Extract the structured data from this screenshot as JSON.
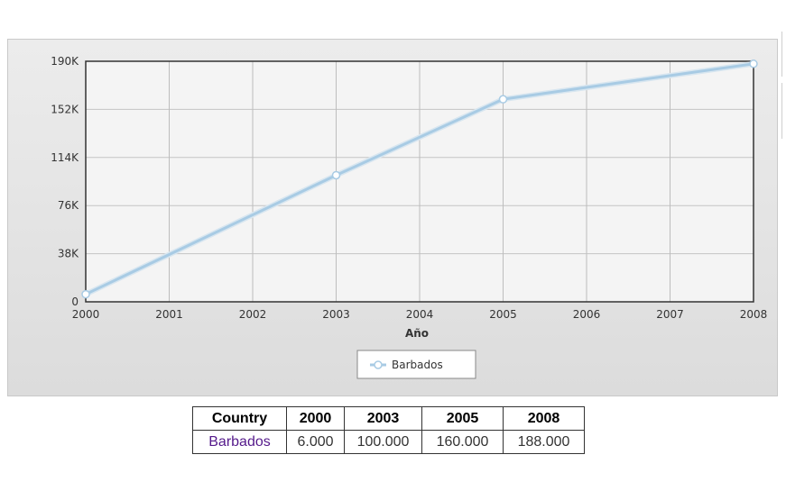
{
  "chart_data": {
    "type": "line",
    "x": [
      2000,
      2003,
      2005,
      2008
    ],
    "x_ticks": [
      "2000",
      "2001",
      "2002",
      "2003",
      "2004",
      "2005",
      "2006",
      "2007",
      "2008"
    ],
    "series": [
      {
        "name": "Barbados",
        "values": [
          6000,
          100000,
          160000,
          188000
        ]
      }
    ],
    "xlabel": "Año",
    "ylabel": "",
    "y_ticks": [
      "0",
      "38K",
      "76K",
      "114K",
      "152K",
      "190K"
    ],
    "y_tick_values": [
      0,
      38000,
      76000,
      114000,
      152000,
      190000
    ],
    "xlim": [
      2000,
      2008
    ],
    "ylim": [
      0,
      190000
    ],
    "grid": true,
    "legend_position": "bottom-center",
    "line_color": "#a8cbe4"
  },
  "table": {
    "headers": [
      "Country",
      "2000",
      "2003",
      "2005",
      "2008"
    ],
    "rows": [
      [
        "Barbados",
        "6.000",
        "100.000",
        "160.000",
        "188.000"
      ]
    ]
  }
}
